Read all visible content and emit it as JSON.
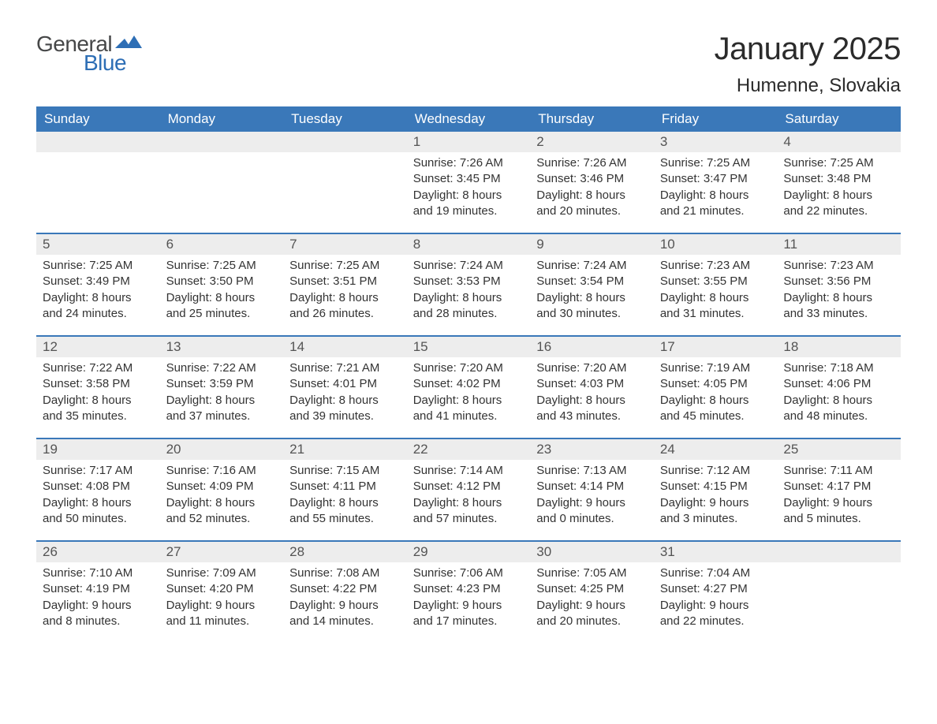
{
  "logo": {
    "general": "General",
    "blue": "Blue",
    "accent_color": "#2d6eb5",
    "text_color": "#464748"
  },
  "title": "January 2025",
  "location": "Humenne, Slovakia",
  "colors": {
    "header_bg": "#3a78b9",
    "header_text": "#ffffff",
    "daynum_bg": "#ededed",
    "daynum_text": "#545454",
    "body_text": "#333333",
    "row_border": "#3a78b9",
    "page_bg": "#ffffff"
  },
  "weekdays": [
    "Sunday",
    "Monday",
    "Tuesday",
    "Wednesday",
    "Thursday",
    "Friday",
    "Saturday"
  ],
  "weeks": [
    [
      null,
      null,
      null,
      {
        "n": "1",
        "sunrise": "7:26 AM",
        "sunset": "3:45 PM",
        "dl1": "Daylight: 8 hours",
        "dl2": "and 19 minutes."
      },
      {
        "n": "2",
        "sunrise": "7:26 AM",
        "sunset": "3:46 PM",
        "dl1": "Daylight: 8 hours",
        "dl2": "and 20 minutes."
      },
      {
        "n": "3",
        "sunrise": "7:25 AM",
        "sunset": "3:47 PM",
        "dl1": "Daylight: 8 hours",
        "dl2": "and 21 minutes."
      },
      {
        "n": "4",
        "sunrise": "7:25 AM",
        "sunset": "3:48 PM",
        "dl1": "Daylight: 8 hours",
        "dl2": "and 22 minutes."
      }
    ],
    [
      {
        "n": "5",
        "sunrise": "7:25 AM",
        "sunset": "3:49 PM",
        "dl1": "Daylight: 8 hours",
        "dl2": "and 24 minutes."
      },
      {
        "n": "6",
        "sunrise": "7:25 AM",
        "sunset": "3:50 PM",
        "dl1": "Daylight: 8 hours",
        "dl2": "and 25 minutes."
      },
      {
        "n": "7",
        "sunrise": "7:25 AM",
        "sunset": "3:51 PM",
        "dl1": "Daylight: 8 hours",
        "dl2": "and 26 minutes."
      },
      {
        "n": "8",
        "sunrise": "7:24 AM",
        "sunset": "3:53 PM",
        "dl1": "Daylight: 8 hours",
        "dl2": "and 28 minutes."
      },
      {
        "n": "9",
        "sunrise": "7:24 AM",
        "sunset": "3:54 PM",
        "dl1": "Daylight: 8 hours",
        "dl2": "and 30 minutes."
      },
      {
        "n": "10",
        "sunrise": "7:23 AM",
        "sunset": "3:55 PM",
        "dl1": "Daylight: 8 hours",
        "dl2": "and 31 minutes."
      },
      {
        "n": "11",
        "sunrise": "7:23 AM",
        "sunset": "3:56 PM",
        "dl1": "Daylight: 8 hours",
        "dl2": "and 33 minutes."
      }
    ],
    [
      {
        "n": "12",
        "sunrise": "7:22 AM",
        "sunset": "3:58 PM",
        "dl1": "Daylight: 8 hours",
        "dl2": "and 35 minutes."
      },
      {
        "n": "13",
        "sunrise": "7:22 AM",
        "sunset": "3:59 PM",
        "dl1": "Daylight: 8 hours",
        "dl2": "and 37 minutes."
      },
      {
        "n": "14",
        "sunrise": "7:21 AM",
        "sunset": "4:01 PM",
        "dl1": "Daylight: 8 hours",
        "dl2": "and 39 minutes."
      },
      {
        "n": "15",
        "sunrise": "7:20 AM",
        "sunset": "4:02 PM",
        "dl1": "Daylight: 8 hours",
        "dl2": "and 41 minutes."
      },
      {
        "n": "16",
        "sunrise": "7:20 AM",
        "sunset": "4:03 PM",
        "dl1": "Daylight: 8 hours",
        "dl2": "and 43 minutes."
      },
      {
        "n": "17",
        "sunrise": "7:19 AM",
        "sunset": "4:05 PM",
        "dl1": "Daylight: 8 hours",
        "dl2": "and 45 minutes."
      },
      {
        "n": "18",
        "sunrise": "7:18 AM",
        "sunset": "4:06 PM",
        "dl1": "Daylight: 8 hours",
        "dl2": "and 48 minutes."
      }
    ],
    [
      {
        "n": "19",
        "sunrise": "7:17 AM",
        "sunset": "4:08 PM",
        "dl1": "Daylight: 8 hours",
        "dl2": "and 50 minutes."
      },
      {
        "n": "20",
        "sunrise": "7:16 AM",
        "sunset": "4:09 PM",
        "dl1": "Daylight: 8 hours",
        "dl2": "and 52 minutes."
      },
      {
        "n": "21",
        "sunrise": "7:15 AM",
        "sunset": "4:11 PM",
        "dl1": "Daylight: 8 hours",
        "dl2": "and 55 minutes."
      },
      {
        "n": "22",
        "sunrise": "7:14 AM",
        "sunset": "4:12 PM",
        "dl1": "Daylight: 8 hours",
        "dl2": "and 57 minutes."
      },
      {
        "n": "23",
        "sunrise": "7:13 AM",
        "sunset": "4:14 PM",
        "dl1": "Daylight: 9 hours",
        "dl2": "and 0 minutes."
      },
      {
        "n": "24",
        "sunrise": "7:12 AM",
        "sunset": "4:15 PM",
        "dl1": "Daylight: 9 hours",
        "dl2": "and 3 minutes."
      },
      {
        "n": "25",
        "sunrise": "7:11 AM",
        "sunset": "4:17 PM",
        "dl1": "Daylight: 9 hours",
        "dl2": "and 5 minutes."
      }
    ],
    [
      {
        "n": "26",
        "sunrise": "7:10 AM",
        "sunset": "4:19 PM",
        "dl1": "Daylight: 9 hours",
        "dl2": "and 8 minutes."
      },
      {
        "n": "27",
        "sunrise": "7:09 AM",
        "sunset": "4:20 PM",
        "dl1": "Daylight: 9 hours",
        "dl2": "and 11 minutes."
      },
      {
        "n": "28",
        "sunrise": "7:08 AM",
        "sunset": "4:22 PM",
        "dl1": "Daylight: 9 hours",
        "dl2": "and 14 minutes."
      },
      {
        "n": "29",
        "sunrise": "7:06 AM",
        "sunset": "4:23 PM",
        "dl1": "Daylight: 9 hours",
        "dl2": "and 17 minutes."
      },
      {
        "n": "30",
        "sunrise": "7:05 AM",
        "sunset": "4:25 PM",
        "dl1": "Daylight: 9 hours",
        "dl2": "and 20 minutes."
      },
      {
        "n": "31",
        "sunrise": "7:04 AM",
        "sunset": "4:27 PM",
        "dl1": "Daylight: 9 hours",
        "dl2": "and 22 minutes."
      },
      null
    ]
  ],
  "labels": {
    "sunrise_prefix": "Sunrise: ",
    "sunset_prefix": "Sunset: "
  }
}
